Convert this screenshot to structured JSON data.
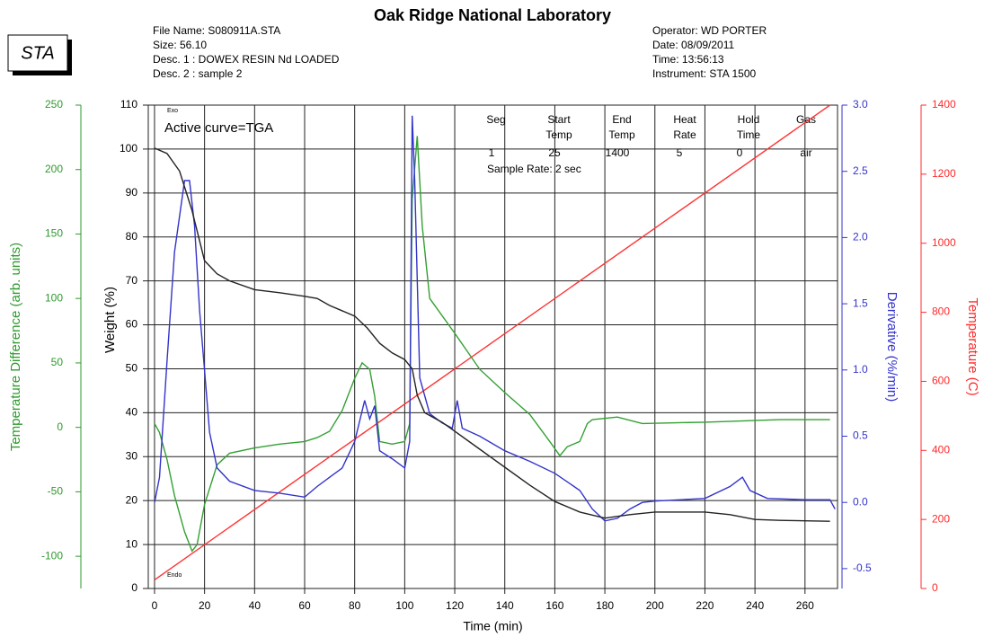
{
  "header": {
    "logo": "STA",
    "title": "Oak Ridge National Laboratory",
    "left": [
      "File Name: S080911A.STA",
      "Size: 56.10",
      "Desc. 1 : DOWEX RESIN Nd LOADED",
      "Desc. 2 : sample 2"
    ],
    "right": [
      "Operator: WD PORTER",
      "Date: 08/09/2011",
      "Time:  13:56:13",
      "Instrument: STA 1500"
    ]
  },
  "chart_data": {
    "type": "line",
    "annotations": {
      "active": "Active curve=TGA",
      "exo": "Exo",
      "endo": "Endo"
    },
    "info_table": {
      "headers": [
        [
          "Seg"
        ],
        [
          "Start",
          "Temp"
        ],
        [
          "End",
          "Temp"
        ],
        [
          "Heat",
          "Rate"
        ],
        [
          "Hold",
          "Time"
        ],
        [
          "Gas"
        ]
      ],
      "values": [
        1,
        25,
        1400,
        5,
        0,
        "air"
      ],
      "note": "Sample Rate: 2 sec"
    },
    "xlabel": "Time (min)",
    "xlim": [
      -2.5,
      273
    ],
    "xticks": [
      0,
      20,
      40,
      60,
      80,
      100,
      120,
      140,
      160,
      180,
      200,
      220,
      240,
      260
    ],
    "grid": true,
    "axes": {
      "y": {
        "label": "Weight (%)",
        "color": "#000000",
        "lim": [
          0,
          110
        ],
        "ticks": [
          0,
          10,
          20,
          30,
          40,
          50,
          60,
          70,
          80,
          90,
          100,
          110
        ]
      },
      "y2": {
        "label": "Derivative (%/min)",
        "color": "#3333cc",
        "lim": [
          -0.65,
          3.0
        ],
        "ticks": [
          {
            "value": 3,
            "label": "3.0"
          },
          2.5,
          {
            "value": 2,
            "label": "2.0"
          },
          1.5,
          {
            "value": 1,
            "label": "1.0"
          },
          0.5,
          {
            "value": 0,
            "label": "0.0"
          },
          -0.5
        ]
      },
      "y3": {
        "label": "Temperature Difference (arb. units)",
        "color": "#2e9a2e",
        "lim": [
          -125,
          250
        ],
        "ticks": [
          -100,
          -50,
          0,
          50,
          100,
          150,
          200,
          250
        ]
      },
      "y4": {
        "label": "Temperature (C)",
        "color": "#ff2a2a",
        "lim": [
          0,
          1400
        ],
        "ticks": [
          0,
          200,
          400,
          600,
          800,
          1000,
          1200,
          1400
        ]
      }
    },
    "series": [
      {
        "color": "#ff3333",
        "axis": "y4",
        "x": [
          0,
          270
        ],
        "values": [
          25,
          1400
        ]
      },
      {
        "color": "#33a033",
        "axis": "y3",
        "x": [
          0,
          2,
          5,
          8,
          12,
          15,
          17,
          20,
          25,
          30,
          40,
          50,
          60,
          65,
          70,
          75,
          80,
          83,
          86,
          88,
          90,
          95,
          100,
          102,
          103,
          105,
          107,
          110,
          120,
          130,
          140,
          150,
          158,
          162,
          165,
          170,
          173,
          175,
          185,
          195,
          220,
          250,
          270
        ],
        "values": [
          3,
          -4,
          -25,
          -53,
          -81,
          -96,
          -91,
          -60,
          -29,
          -20,
          -16,
          -13,
          -11,
          -8,
          -3,
          13,
          38,
          50,
          45,
          24,
          -11,
          -13,
          -11,
          3,
          177,
          226,
          156,
          100,
          73,
          45,
          27,
          10,
          -11,
          -22,
          -15,
          -11,
          3,
          6,
          8,
          3,
          4,
          6,
          6
        ]
      },
      {
        "color": "#3333cc",
        "axis": "y2",
        "x": [
          0,
          2,
          5,
          8,
          12,
          14,
          16,
          18,
          20,
          22,
          25,
          30,
          40,
          50,
          60,
          65,
          70,
          75,
          80,
          84,
          86,
          88,
          90,
          95,
          100,
          102,
          103,
          104,
          106,
          110,
          115,
          119,
          121,
          123,
          130,
          140,
          150,
          160,
          170,
          175,
          180,
          185,
          190,
          195,
          200,
          220,
          230,
          235,
          238,
          245,
          260,
          270,
          272
        ],
        "values": [
          0,
          0.19,
          1.07,
          1.89,
          2.43,
          2.43,
          2.09,
          1.45,
          1.0,
          0.53,
          0.26,
          0.16,
          0.09,
          0.07,
          0.04,
          0.12,
          0.19,
          0.26,
          0.46,
          0.77,
          0.63,
          0.73,
          0.39,
          0.33,
          0.26,
          0.46,
          2.92,
          2.43,
          0.94,
          0.67,
          0.6,
          0.56,
          0.77,
          0.56,
          0.5,
          0.39,
          0.31,
          0.22,
          0.09,
          -0.05,
          -0.14,
          -0.12,
          -0.05,
          0,
          0.01,
          0.03,
          0.12,
          0.19,
          0.09,
          0.03,
          0.02,
          0.02,
          -0.05
        ]
      },
      {
        "color": "#222222",
        "axis": "y",
        "x": [
          0,
          5,
          10,
          15,
          20,
          25,
          30,
          40,
          50,
          60,
          65,
          70,
          80,
          85,
          90,
          95,
          100,
          103,
          105,
          108,
          115,
          120,
          130,
          140,
          150,
          160,
          170,
          180,
          190,
          200,
          220,
          230,
          240,
          250,
          270
        ],
        "values": [
          100.2,
          99,
          95,
          86,
          74.6,
          71.6,
          70,
          68,
          67.3,
          66.5,
          66,
          64.4,
          62,
          59.3,
          55.8,
          53.6,
          52.1,
          50,
          44,
          40,
          37.8,
          35.8,
          31.7,
          27.6,
          23.5,
          19.8,
          17.4,
          16,
          16.8,
          17.4,
          17.4,
          16.8,
          15.7,
          15.5,
          15.3
        ]
      }
    ]
  }
}
